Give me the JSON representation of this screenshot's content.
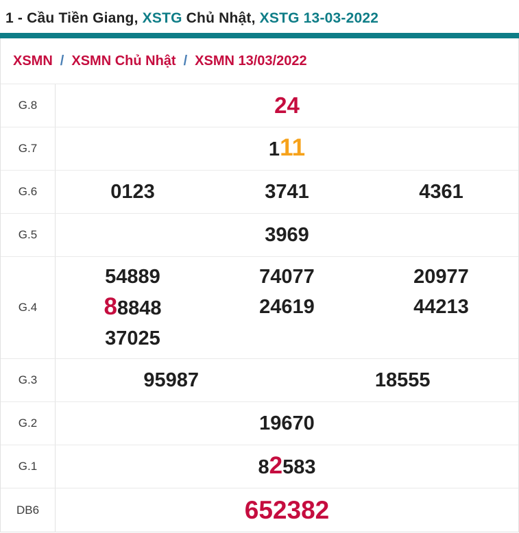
{
  "page_title": {
    "parts": [
      {
        "text": "1 - Cầu Tiền Giang, "
      },
      {
        "text": "XSTG"
      },
      {
        "text": " Chủ Nhật, "
      },
      {
        "text": "XSTG 13-03-2022"
      }
    ]
  },
  "breadcrumb": {
    "separator": "/",
    "items": [
      {
        "label": "XSMN"
      },
      {
        "label": "XSMN Chủ Nhật"
      },
      {
        "label": "XSMN 13/03/2022"
      }
    ]
  },
  "colors": {
    "teal": "#0e7d87",
    "red": "#c50d3f",
    "orange": "#f6a21b",
    "black": "#1f1f1f",
    "separator_blue": "#4a7fb5"
  },
  "results": {
    "rows": [
      {
        "id": "g8",
        "label": "G.8",
        "lines": [
          [
            [
              {
                "t": "24",
                "c": "red"
              }
            ]
          ]
        ]
      },
      {
        "id": "g7",
        "label": "G.7",
        "lines": [
          [
            [
              {
                "t": "1"
              },
              {
                "t": "11",
                "c": "orange",
                "big": true
              }
            ]
          ]
        ]
      },
      {
        "id": "g6",
        "label": "G.6",
        "lines": [
          [
            [
              {
                "t": "0123"
              }
            ],
            [
              {
                "t": "3741"
              }
            ],
            [
              {
                "t": "4361"
              }
            ]
          ]
        ]
      },
      {
        "id": "g5",
        "label": "G.5",
        "lines": [
          [
            [
              {
                "t": "3969"
              }
            ]
          ]
        ]
      },
      {
        "id": "g4",
        "label": "G.4",
        "lines": [
          [
            [
              {
                "t": "54889"
              }
            ],
            [
              {
                "t": "74077"
              }
            ],
            [
              {
                "t": "20977"
              }
            ]
          ],
          [
            [
              {
                "t": "8",
                "c": "red",
                "big": true
              },
              {
                "t": "8848"
              }
            ],
            [
              {
                "t": "24619"
              }
            ],
            [
              {
                "t": "44213"
              }
            ]
          ],
          [
            [
              {
                "t": "37025"
              }
            ],
            [
              {
                "t": ""
              }
            ],
            [
              {
                "t": ""
              }
            ]
          ]
        ]
      },
      {
        "id": "g3",
        "label": "G.3",
        "lines": [
          [
            [
              {
                "t": "95987"
              }
            ],
            [
              {
                "t": "18555"
              }
            ]
          ]
        ]
      },
      {
        "id": "g2",
        "label": "G.2",
        "lines": [
          [
            [
              {
                "t": "19670"
              }
            ]
          ]
        ]
      },
      {
        "id": "g1",
        "label": "G.1",
        "lines": [
          [
            [
              {
                "t": "8"
              },
              {
                "t": "2",
                "c": "red",
                "big": true
              },
              {
                "t": "583"
              }
            ]
          ]
        ]
      },
      {
        "id": "db6",
        "label": "DB6",
        "lines": [
          [
            [
              {
                "t": "652382",
                "c": "red"
              }
            ]
          ]
        ]
      }
    ]
  }
}
